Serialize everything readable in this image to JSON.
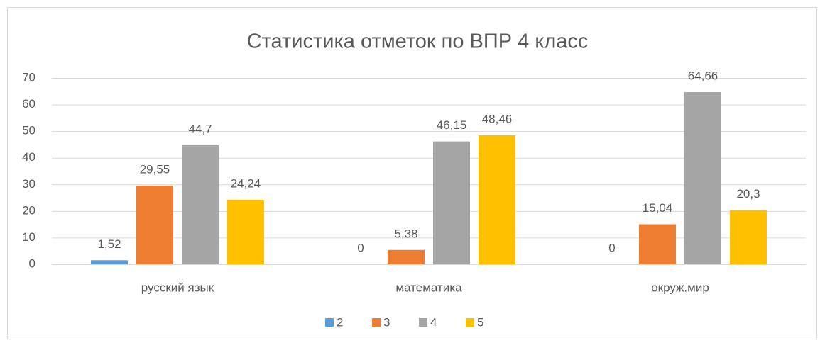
{
  "chart_data": {
    "type": "bar",
    "title": "Статистика отметок по ВПР 4 класс",
    "categories": [
      "русский язык",
      "математика",
      "окруж.мир"
    ],
    "series": [
      {
        "name": "2",
        "color": "#5b9bd5",
        "values": [
          1.52,
          0,
          0
        ],
        "value_labels": [
          "1,52",
          "0",
          "0"
        ]
      },
      {
        "name": "3",
        "color": "#ed7d31",
        "values": [
          29.55,
          5.38,
          15.04
        ],
        "value_labels": [
          "29,55",
          "5,38",
          "15,04"
        ]
      },
      {
        "name": "4",
        "color": "#a5a5a5",
        "values": [
          44.7,
          46.15,
          64.66
        ],
        "value_labels": [
          "44,7",
          "46,15",
          "64,66"
        ]
      },
      {
        "name": "5",
        "color": "#ffc000",
        "values": [
          24.24,
          48.46,
          20.3
        ],
        "value_labels": [
          "24,24",
          "48,46",
          "20,3"
        ]
      }
    ],
    "ylim": [
      0,
      70
    ],
    "yticks": [
      0,
      10,
      20,
      30,
      40,
      50,
      60,
      70
    ],
    "grid": true,
    "legend": "bottom"
  }
}
